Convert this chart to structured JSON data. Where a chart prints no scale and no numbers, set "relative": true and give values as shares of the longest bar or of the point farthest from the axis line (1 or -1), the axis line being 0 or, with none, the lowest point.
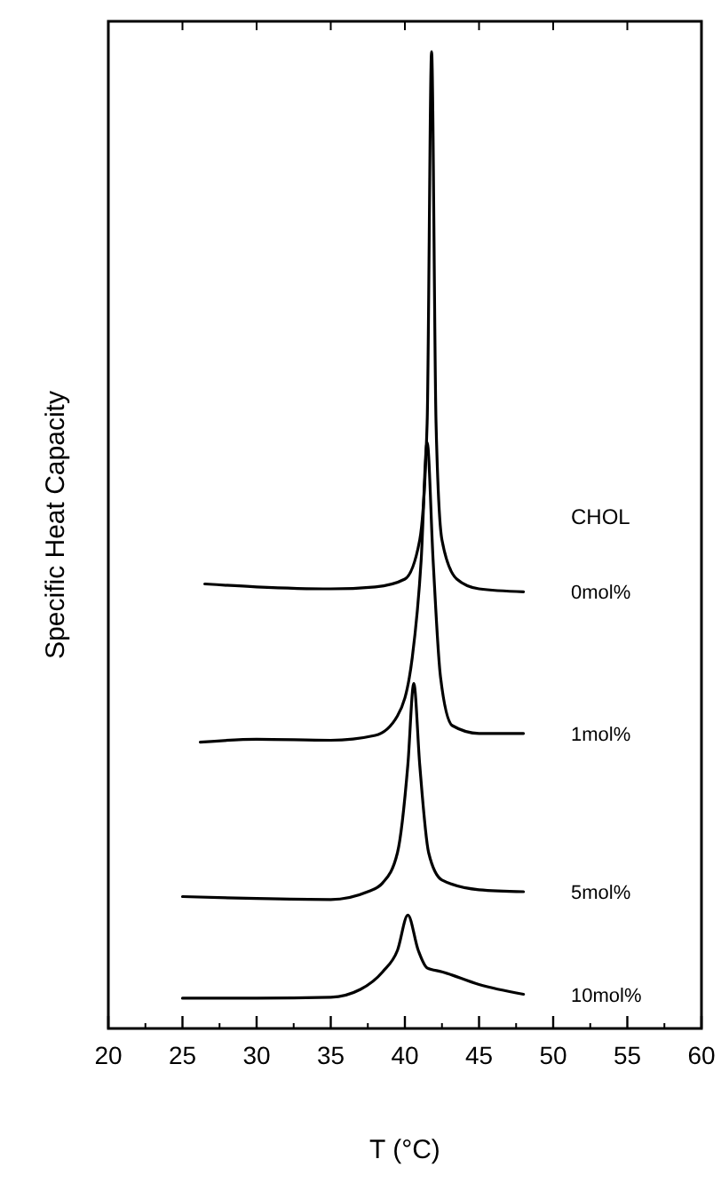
{
  "chart_data": {
    "type": "line",
    "relative": true,
    "xlabel": "T (°C)",
    "ylabel": "Specific Heat Capacity",
    "legend_title": "CHOL",
    "xlim": [
      20,
      60
    ],
    "xticks": [
      20,
      25,
      30,
      35,
      40,
      45,
      50,
      55,
      60
    ],
    "tick_labels": "x",
    "legend": "right",
    "series": [
      {
        "name": "0mol%",
        "color": "#000000",
        "x": [
          26.5,
          30,
          35,
          38,
          40,
          41,
          41.5,
          41.8,
          42.1,
          42.5,
          43.5,
          45,
          48
        ],
        "values": [
          0.455,
          0.452,
          0.45,
          0.452,
          0.46,
          0.5,
          0.62,
          1.0,
          0.62,
          0.5,
          0.46,
          0.45,
          0.447
        ]
      },
      {
        "name": "1mol%",
        "color": "#000000",
        "x": [
          26.2,
          30,
          35,
          38,
          39.5,
          40.5,
          41.1,
          41.5,
          41.9,
          42.4,
          43.2,
          45,
          48
        ],
        "values": [
          0.293,
          0.296,
          0.295,
          0.3,
          0.32,
          0.38,
          0.48,
          0.6,
          0.48,
          0.36,
          0.31,
          0.302,
          0.302
        ]
      },
      {
        "name": "5mol%",
        "color": "#000000",
        "x": [
          25,
          30,
          35,
          37.5,
          38.5,
          39.5,
          40.2,
          40.6,
          41.0,
          41.6,
          42.5,
          45,
          48
        ],
        "values": [
          0.135,
          0.133,
          0.132,
          0.14,
          0.149,
          0.18,
          0.27,
          0.353,
          0.27,
          0.18,
          0.152,
          0.142,
          0.14
        ]
      },
      {
        "name": "10mol%",
        "color": "#000000",
        "x": [
          25,
          30,
          35,
          37,
          38.5,
          39.5,
          40.2,
          40.9,
          41.5,
          42.5,
          45,
          48
        ],
        "values": [
          0.031,
          0.031,
          0.032,
          0.04,
          0.058,
          0.08,
          0.116,
          0.08,
          0.062,
          0.058,
          0.045,
          0.035
        ]
      }
    ]
  }
}
